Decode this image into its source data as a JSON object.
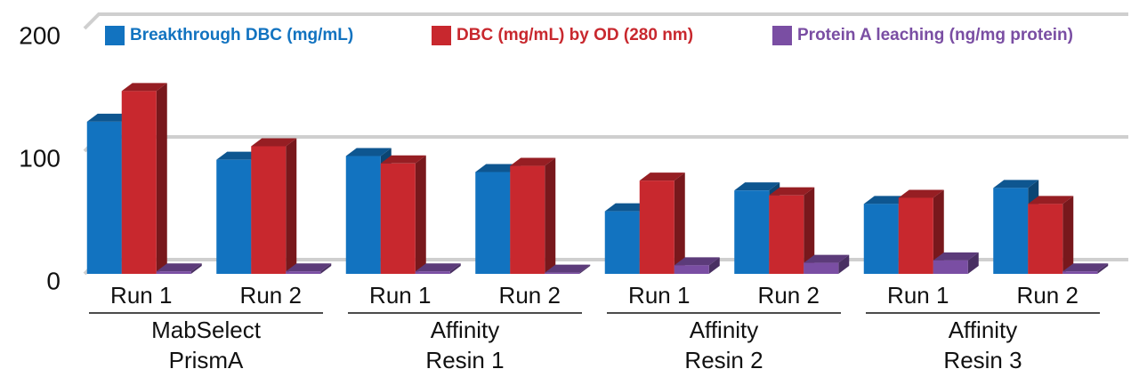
{
  "chart_data": {
    "type": "bar3d",
    "groups": [
      {
        "label": [
          "MabSelect",
          "PrismA"
        ],
        "categories": [
          "Run 1",
          "Run 2"
        ]
      },
      {
        "label": [
          "Affinity",
          "Resin 1"
        ],
        "categories": [
          "Run 1",
          "Run 2"
        ]
      },
      {
        "label": [
          "Affinity",
          "Resin 2"
        ],
        "categories": [
          "Run 1",
          "Run 2"
        ]
      },
      {
        "label": [
          "Affinity",
          "Resin 3"
        ],
        "categories": [
          "Run 1",
          "Run 2"
        ]
      }
    ],
    "series": [
      {
        "name": "Breakthrough DBC (mg/mL)",
        "color": "#1273c0",
        "values": [
          124,
          93,
          96,
          83,
          51,
          68,
          57,
          70
        ]
      },
      {
        "name": "DBC (mg/mL) by OD (280 nm)",
        "color": "#c8282e",
        "values": [
          149,
          104,
          90,
          88,
          76,
          64,
          62,
          57
        ]
      },
      {
        "name": "Protein A leaching (ng/mg protein)",
        "color": "#7a4ea3",
        "values": [
          2,
          2,
          2,
          1,
          7,
          9,
          11,
          2
        ]
      }
    ],
    "ylim": [
      0,
      200
    ],
    "yticks": [
      0,
      100,
      200
    ],
    "grid": true
  }
}
